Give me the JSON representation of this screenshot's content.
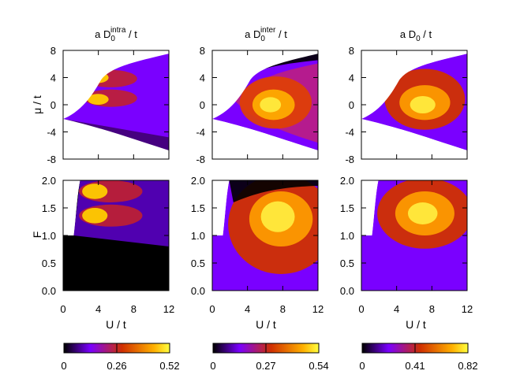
{
  "chart_data": {
    "type": "heatmap",
    "colormap": [
      "#000000",
      "#7a00ff",
      "#d03000",
      "#ffd600",
      "#ffff60"
    ],
    "columns": [
      {
        "title_prefix": "a D",
        "title_sub": "0",
        "title_sup": "intra",
        "title_suffix": " / t",
        "colorbar": {
          "min": 0,
          "mid": 0.26,
          "max": 0.52,
          "labels": [
            "0",
            "0.26",
            "0.52"
          ]
        }
      },
      {
        "title_prefix": "a D",
        "title_sub": "0",
        "title_sup": "inter",
        "title_suffix": " / t",
        "colorbar": {
          "min": 0,
          "mid": 0.27,
          "max": 0.54,
          "labels": [
            "0",
            "0.27",
            "0.54"
          ]
        }
      },
      {
        "title_prefix": "a D",
        "title_sub": "0",
        "title_sup": "",
        "title_suffix": " / t",
        "colorbar": {
          "min": 0,
          "mid": 0.41,
          "max": 0.82,
          "labels": [
            "0",
            "0.41",
            "0.82"
          ]
        }
      }
    ],
    "top_row": {
      "ylabel": "μ / t",
      "ylim": [
        -8,
        8
      ],
      "yticks": [
        "8",
        "4",
        "0",
        "-4",
        "-8"
      ]
    },
    "bottom_row": {
      "ylabel": "F",
      "ylim": [
        0,
        2
      ],
      "yticks": [
        "2.0",
        "1.5",
        "1.0",
        "0.5",
        "0.0"
      ]
    },
    "xlabel": "U / t",
    "xlim": [
      0,
      12
    ],
    "xticks": [
      "0",
      "4",
      "8",
      "12"
    ]
  }
}
